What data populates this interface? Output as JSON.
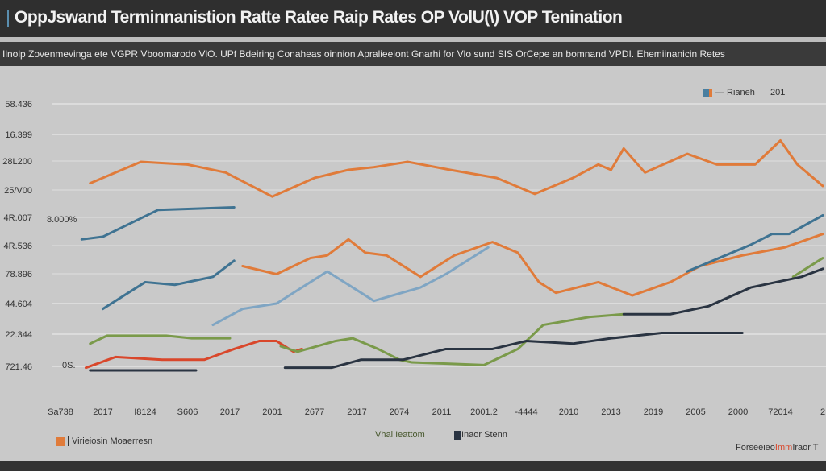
{
  "title": "OppJswand Terminnanistion Ratte Ratee Raip Rates OP VolU(\\) VOP Tenination",
  "subtitle": "Ilnolp Zovenmevinga ete VGPR Vboomarodo VlO. UPf Bdeiring Conaheas oinnion Apralieeiont Gnarhi for Vlo sund SIS OrCepe an bomnand VPDI. Ehemiinanicin Retes",
  "chart_data": {
    "type": "line",
    "title": "OppJswand Terminnanistion Ratte Ratee Raip Rates OP VolU(\\) VOP Tenination",
    "ylim": [
      0,
      100
    ],
    "grid": true,
    "y_tick_labels": [
      "58.436",
      "16.399",
      "28L200",
      "25/V00",
      "4R.007",
      "4R.536",
      "78.896",
      "44.604",
      "22.344",
      "721.46"
    ],
    "x_tick_labels": [
      "Sa738",
      "2017",
      "I8124",
      "S606",
      "2017",
      "2001",
      "2677",
      "2017",
      "2074",
      "2011",
      "2001.2",
      "-4444",
      "2010",
      "2013",
      "2019",
      "2005",
      "2000",
      "72014",
      "2"
    ],
    "annotations": [
      "8.000%",
      "0S."
    ],
    "legend_top": {
      "label": "— Rianeh",
      "extra": "201",
      "colors": [
        "#4a7fa0",
        "#e07b3a"
      ]
    },
    "legend_bottom": [
      {
        "label": "Virieiosin Moaerresn",
        "color": "#e07b3a"
      },
      {
        "label": "Vhal Ieattom",
        "color": "#7a9a4a"
      },
      {
        "label": "Inaor Stenn",
        "color": "#2a3442"
      }
    ],
    "footer_text": {
      "a": "Forseeieo",
      "b": "Imm",
      "c": "Iraor T"
    },
    "series": [
      {
        "color": "#e07b3a",
        "points": [
          [
            0.7,
            70
          ],
          [
            1.9,
            78
          ],
          [
            3.0,
            77
          ],
          [
            3.9,
            74
          ],
          [
            5.0,
            65
          ],
          [
            6.0,
            72
          ],
          [
            6.8,
            75
          ],
          [
            7.4,
            76
          ],
          [
            8.2,
            78
          ],
          [
            9.2,
            75
          ],
          [
            10.3,
            72
          ],
          [
            11.2,
            66
          ],
          [
            12.1,
            72
          ],
          [
            12.7,
            77
          ],
          [
            13.0,
            75
          ],
          [
            13.3,
            83
          ],
          [
            13.8,
            74
          ],
          [
            14.8,
            81
          ],
          [
            15.5,
            77
          ],
          [
            16.4,
            77
          ],
          [
            17.0,
            86
          ],
          [
            17.4,
            77
          ],
          [
            18.0,
            69
          ]
        ]
      },
      {
        "color": "#e07b3a",
        "points": [
          [
            4.3,
            39
          ],
          [
            5.1,
            36
          ],
          [
            5.9,
            42
          ],
          [
            6.3,
            43
          ],
          [
            6.8,
            49
          ],
          [
            7.2,
            44
          ],
          [
            7.7,
            43
          ],
          [
            8.5,
            35
          ],
          [
            9.3,
            43
          ],
          [
            10.2,
            48
          ],
          [
            10.8,
            44
          ],
          [
            11.3,
            33
          ],
          [
            11.7,
            29
          ],
          [
            12.7,
            33
          ],
          [
            13.5,
            28
          ],
          [
            14.4,
            33
          ],
          [
            15.1,
            39
          ],
          [
            16.1,
            43
          ],
          [
            17.1,
            46
          ],
          [
            18.0,
            51
          ]
        ]
      },
      {
        "color": "#d9472b",
        "points": [
          [
            0.6,
            1
          ],
          [
            1.3,
            5
          ],
          [
            2.4,
            4
          ],
          [
            3.4,
            4
          ],
          [
            4.1,
            8
          ],
          [
            4.7,
            11
          ],
          [
            5.1,
            11
          ],
          [
            5.5,
            7
          ],
          [
            5.7,
            8
          ]
        ]
      },
      {
        "color": "#3f7392",
        "points": [
          [
            0.5,
            49
          ],
          [
            1.0,
            50
          ],
          [
            2.3,
            60
          ],
          [
            4.1,
            61
          ]
        ]
      },
      {
        "color": "#3f7392",
        "points": [
          [
            1.0,
            23
          ],
          [
            2.0,
            33
          ],
          [
            2.7,
            32
          ],
          [
            3.6,
            35
          ],
          [
            4.1,
            41
          ]
        ]
      },
      {
        "color": "#7fa5c3",
        "points": [
          [
            3.6,
            17
          ],
          [
            4.3,
            23
          ],
          [
            5.1,
            25
          ],
          [
            5.6,
            30
          ],
          [
            6.3,
            37
          ],
          [
            7.4,
            26
          ],
          [
            8.5,
            31
          ],
          [
            9.1,
            36
          ],
          [
            10.1,
            46
          ]
        ]
      },
      {
        "color": "#3f7392",
        "points": [
          [
            14.8,
            37
          ],
          [
            16.3,
            47
          ],
          [
            16.8,
            51
          ],
          [
            17.2,
            51
          ],
          [
            18.0,
            58
          ]
        ]
      },
      {
        "color": "#7a9a4a",
        "points": [
          [
            0.7,
            10
          ],
          [
            1.1,
            13
          ],
          [
            2.5,
            13
          ],
          [
            3.1,
            12
          ],
          [
            4.0,
            12
          ]
        ]
      },
      {
        "color": "#7a9a4a",
        "points": [
          [
            5.2,
            9
          ],
          [
            5.6,
            7
          ],
          [
            6.5,
            11
          ],
          [
            6.9,
            12
          ],
          [
            7.5,
            8
          ],
          [
            8.0,
            4
          ],
          [
            8.3,
            3
          ],
          [
            10.0,
            2
          ],
          [
            10.8,
            8
          ],
          [
            11.4,
            17
          ],
          [
            12.5,
            20
          ],
          [
            13.3,
            21
          ]
        ]
      },
      {
        "color": "#7a9a4a",
        "points": [
          [
            17.3,
            35
          ],
          [
            18.0,
            42
          ]
        ]
      },
      {
        "color": "#2a3442",
        "points": [
          [
            0.7,
            0
          ],
          [
            3.2,
            0
          ]
        ]
      },
      {
        "color": "#2a3442",
        "points": [
          [
            5.3,
            1
          ],
          [
            6.4,
            1
          ],
          [
            7.1,
            4
          ],
          [
            8.1,
            4
          ],
          [
            9.1,
            8
          ],
          [
            10.2,
            8
          ],
          [
            11.0,
            11
          ],
          [
            12.1,
            10
          ],
          [
            13.0,
            12
          ],
          [
            14.2,
            14
          ],
          [
            16.1,
            14
          ]
        ]
      },
      {
        "color": "#2a3442",
        "points": [
          [
            13.3,
            21
          ],
          [
            14.4,
            21
          ],
          [
            15.3,
            24
          ],
          [
            16.3,
            31
          ],
          [
            17.5,
            35
          ],
          [
            18.0,
            38
          ]
        ]
      }
    ]
  }
}
